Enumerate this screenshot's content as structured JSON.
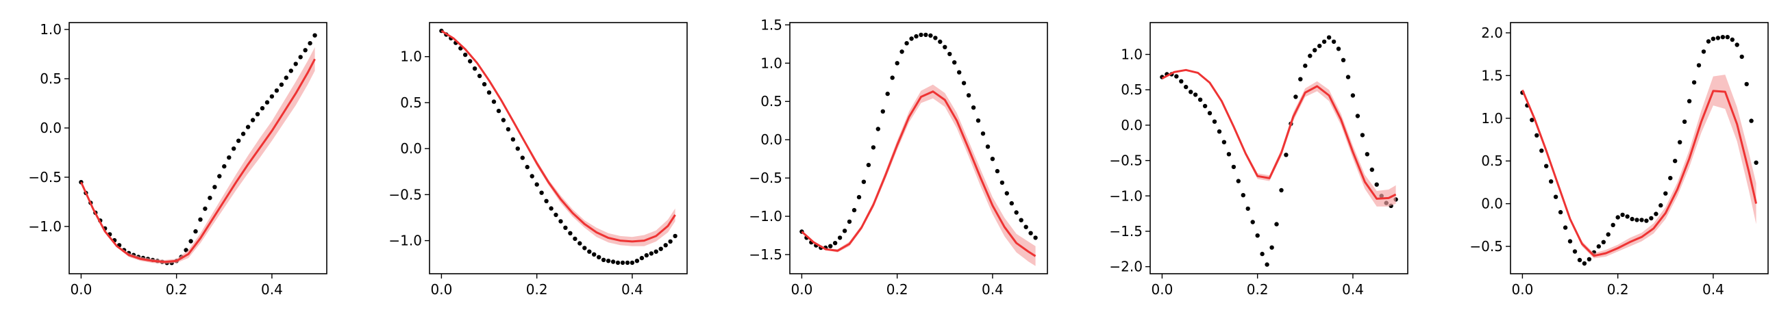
{
  "colors": {
    "background": "#ffffff",
    "axis": "#000000",
    "model_line": "#ee3333",
    "model_band": "#f4a3a3",
    "observations": "#000000"
  },
  "chart_data": [
    {
      "type": "line",
      "xlim": [
        -0.025,
        0.515
      ],
      "ylim": [
        -1.48,
        1.07
      ],
      "xticks": [
        0.0,
        0.2,
        0.4
      ],
      "xtick_labels": [
        "0.0",
        "0.2",
        "0.4"
      ],
      "yticks": [
        -1.0,
        -0.5,
        0.0,
        0.5,
        1.0
      ],
      "ytick_labels": [
        "−1.0",
        "−0.5",
        "0.0",
        "0.5",
        "1.0"
      ],
      "grid": false,
      "series": [
        {
          "kind": "markers",
          "x": [
            0.0,
            0.01,
            0.02,
            0.03,
            0.04,
            0.05,
            0.06,
            0.07,
            0.08,
            0.09,
            0.1,
            0.11,
            0.12,
            0.13,
            0.14,
            0.15,
            0.16,
            0.17,
            0.18,
            0.19,
            0.2,
            0.21,
            0.22,
            0.23,
            0.24,
            0.25,
            0.26,
            0.27,
            0.28,
            0.29,
            0.3,
            0.31,
            0.32,
            0.33,
            0.34,
            0.35,
            0.36,
            0.37,
            0.38,
            0.39,
            0.4,
            0.41,
            0.42,
            0.43,
            0.44,
            0.45,
            0.46,
            0.47,
            0.48,
            0.49
          ],
          "y": [
            -0.55,
            -0.66,
            -0.76,
            -0.86,
            -0.94,
            -1.02,
            -1.08,
            -1.14,
            -1.19,
            -1.24,
            -1.27,
            -1.29,
            -1.31,
            -1.32,
            -1.33,
            -1.34,
            -1.35,
            -1.36,
            -1.37,
            -1.37,
            -1.35,
            -1.31,
            -1.24,
            -1.15,
            -1.05,
            -0.93,
            -0.82,
            -0.71,
            -0.6,
            -0.49,
            -0.39,
            -0.3,
            -0.21,
            -0.13,
            -0.06,
            0.01,
            0.08,
            0.14,
            0.2,
            0.26,
            0.32,
            0.38,
            0.44,
            0.51,
            0.58,
            0.65,
            0.72,
            0.79,
            0.86,
            0.94
          ]
        },
        {
          "kind": "line",
          "x": [
            0.0,
            0.025,
            0.05,
            0.075,
            0.1,
            0.125,
            0.15,
            0.175,
            0.2,
            0.225,
            0.25,
            0.275,
            0.3,
            0.325,
            0.35,
            0.375,
            0.4,
            0.425,
            0.45,
            0.475,
            0.49
          ],
          "y": [
            -0.55,
            -0.82,
            -1.05,
            -1.2,
            -1.29,
            -1.33,
            -1.35,
            -1.36,
            -1.35,
            -1.28,
            -1.12,
            -0.93,
            -0.74,
            -0.55,
            -0.37,
            -0.2,
            -0.03,
            0.16,
            0.35,
            0.56,
            0.7
          ],
          "band": [
            0.0,
            0.0,
            0.01,
            0.01,
            0.02,
            0.02,
            0.02,
            0.02,
            0.02,
            0.04,
            0.05,
            0.06,
            0.07,
            0.08,
            0.09,
            0.1,
            0.1,
            0.11,
            0.12,
            0.12,
            0.12
          ]
        }
      ]
    },
    {
      "type": "line",
      "xlim": [
        -0.025,
        0.515
      ],
      "ylim": [
        -1.36,
        1.37
      ],
      "xticks": [
        0.0,
        0.2,
        0.4
      ],
      "xtick_labels": [
        "0.0",
        "0.2",
        "0.4"
      ],
      "yticks": [
        -1.0,
        -0.5,
        0.0,
        0.5,
        1.0
      ],
      "ytick_labels": [
        "−1.0",
        "−0.5",
        "0.0",
        "0.5",
        "1.0"
      ],
      "grid": false,
      "series": [
        {
          "kind": "markers",
          "x": [
            0.0,
            0.01,
            0.02,
            0.03,
            0.04,
            0.05,
            0.06,
            0.07,
            0.08,
            0.09,
            0.1,
            0.11,
            0.12,
            0.13,
            0.14,
            0.15,
            0.16,
            0.17,
            0.18,
            0.19,
            0.2,
            0.21,
            0.22,
            0.23,
            0.24,
            0.25,
            0.26,
            0.27,
            0.28,
            0.29,
            0.3,
            0.31,
            0.32,
            0.33,
            0.34,
            0.35,
            0.36,
            0.37,
            0.38,
            0.39,
            0.4,
            0.41,
            0.42,
            0.43,
            0.44,
            0.45,
            0.46,
            0.47,
            0.48,
            0.49
          ],
          "y": [
            1.28,
            1.24,
            1.2,
            1.15,
            1.09,
            1.02,
            0.95,
            0.87,
            0.79,
            0.7,
            0.61,
            0.51,
            0.41,
            0.31,
            0.21,
            0.1,
            0.0,
            -0.1,
            -0.2,
            -0.3,
            -0.39,
            -0.48,
            -0.57,
            -0.65,
            -0.72,
            -0.79,
            -0.86,
            -0.92,
            -0.98,
            -1.03,
            -1.08,
            -1.12,
            -1.15,
            -1.18,
            -1.21,
            -1.22,
            -1.23,
            -1.24,
            -1.24,
            -1.24,
            -1.24,
            -1.22,
            -1.19,
            -1.16,
            -1.14,
            -1.12,
            -1.09,
            -1.05,
            -1.01,
            -0.95
          ]
        },
        {
          "kind": "line",
          "x": [
            0.0,
            0.025,
            0.05,
            0.075,
            0.1,
            0.125,
            0.15,
            0.175,
            0.2,
            0.225,
            0.25,
            0.275,
            0.3,
            0.325,
            0.35,
            0.375,
            0.4,
            0.425,
            0.45,
            0.475,
            0.49
          ],
          "y": [
            1.28,
            1.2,
            1.08,
            0.93,
            0.74,
            0.53,
            0.3,
            0.07,
            -0.16,
            -0.37,
            -0.55,
            -0.7,
            -0.82,
            -0.91,
            -0.97,
            -1.0,
            -1.01,
            -1.0,
            -0.95,
            -0.84,
            -0.72
          ],
          "band": [
            0.0,
            0.0,
            0.01,
            0.01,
            0.01,
            0.02,
            0.02,
            0.02,
            0.03,
            0.03,
            0.04,
            0.04,
            0.04,
            0.05,
            0.05,
            0.05,
            0.05,
            0.06,
            0.06,
            0.07,
            0.07
          ]
        }
      ]
    },
    {
      "type": "line",
      "xlim": [
        -0.025,
        0.515
      ],
      "ylim": [
        -1.75,
        1.53
      ],
      "xticks": [
        0.0,
        0.2,
        0.4
      ],
      "xtick_labels": [
        "0.0",
        "0.2",
        "0.4"
      ],
      "yticks": [
        -1.5,
        -1.0,
        -0.5,
        0.0,
        0.5,
        1.0,
        1.5
      ],
      "ytick_labels": [
        "−1.5",
        "−1.0",
        "−0.5",
        "0.0",
        "0.5",
        "1.0",
        "1.5"
      ],
      "grid": false,
      "series": [
        {
          "kind": "markers",
          "x": [
            0.0,
            0.01,
            0.02,
            0.03,
            0.04,
            0.05,
            0.06,
            0.07,
            0.08,
            0.09,
            0.1,
            0.11,
            0.12,
            0.13,
            0.14,
            0.15,
            0.16,
            0.17,
            0.18,
            0.19,
            0.2,
            0.21,
            0.22,
            0.23,
            0.24,
            0.25,
            0.26,
            0.27,
            0.28,
            0.29,
            0.3,
            0.31,
            0.32,
            0.33,
            0.34,
            0.35,
            0.36,
            0.37,
            0.38,
            0.39,
            0.4,
            0.41,
            0.42,
            0.43,
            0.44,
            0.45,
            0.46,
            0.47,
            0.48,
            0.49
          ],
          "y": [
            -1.2,
            -1.28,
            -1.34,
            -1.38,
            -1.41,
            -1.41,
            -1.39,
            -1.35,
            -1.28,
            -1.19,
            -1.07,
            -0.92,
            -0.75,
            -0.55,
            -0.33,
            -0.1,
            0.14,
            0.37,
            0.6,
            0.81,
            1.0,
            1.15,
            1.26,
            1.32,
            1.35,
            1.37,
            1.37,
            1.36,
            1.33,
            1.28,
            1.21,
            1.12,
            1.01,
            0.88,
            0.74,
            0.58,
            0.42,
            0.25,
            0.08,
            -0.09,
            -0.25,
            -0.41,
            -0.56,
            -0.7,
            -0.83,
            -0.95,
            -1.05,
            -1.14,
            -1.22,
            -1.28
          ]
        },
        {
          "kind": "line",
          "x": [
            0.0,
            0.025,
            0.05,
            0.075,
            0.1,
            0.125,
            0.15,
            0.175,
            0.2,
            0.225,
            0.25,
            0.275,
            0.3,
            0.325,
            0.35,
            0.375,
            0.4,
            0.425,
            0.45,
            0.475,
            0.49
          ],
          "y": [
            -1.2,
            -1.34,
            -1.43,
            -1.45,
            -1.36,
            -1.15,
            -0.85,
            -0.47,
            -0.07,
            0.3,
            0.56,
            0.63,
            0.52,
            0.25,
            -0.12,
            -0.5,
            -0.86,
            -1.14,
            -1.35,
            -1.46,
            -1.52
          ],
          "band": [
            0.0,
            0.01,
            0.01,
            0.02,
            0.03,
            0.03,
            0.04,
            0.05,
            0.06,
            0.07,
            0.08,
            0.09,
            0.09,
            0.1,
            0.1,
            0.11,
            0.11,
            0.12,
            0.12,
            0.13,
            0.13
          ]
        }
      ]
    },
    {
      "type": "line",
      "xlim": [
        -0.025,
        0.515
      ],
      "ylim": [
        -2.1,
        1.45
      ],
      "xticks": [
        0.0,
        0.2,
        0.4
      ],
      "xtick_labels": [
        "0.0",
        "0.2",
        "0.4"
      ],
      "yticks": [
        -2.0,
        -1.5,
        -1.0,
        -0.5,
        0.0,
        0.5,
        1.0
      ],
      "ytick_labels": [
        "−2.0",
        "−1.5",
        "−1.0",
        "−0.5",
        "0.0",
        "0.5",
        "1.0"
      ],
      "grid": false,
      "series": [
        {
          "kind": "markers",
          "x": [
            0.0,
            0.01,
            0.02,
            0.03,
            0.04,
            0.05,
            0.06,
            0.07,
            0.08,
            0.09,
            0.1,
            0.11,
            0.12,
            0.13,
            0.14,
            0.15,
            0.16,
            0.17,
            0.18,
            0.19,
            0.2,
            0.21,
            0.22,
            0.23,
            0.24,
            0.25,
            0.26,
            0.27,
            0.28,
            0.29,
            0.3,
            0.31,
            0.32,
            0.33,
            0.34,
            0.35,
            0.36,
            0.37,
            0.38,
            0.39,
            0.4,
            0.41,
            0.42,
            0.43,
            0.44,
            0.45,
            0.46,
            0.47,
            0.48,
            0.49
          ],
          "y": [
            0.68,
            0.72,
            0.72,
            0.69,
            0.62,
            0.54,
            0.47,
            0.43,
            0.36,
            0.27,
            0.17,
            0.05,
            -0.09,
            -0.24,
            -0.41,
            -0.59,
            -0.79,
            -0.99,
            -1.18,
            -1.37,
            -1.56,
            -1.82,
            -1.97,
            -1.73,
            -1.4,
            -0.92,
            -0.42,
            0.02,
            0.4,
            0.65,
            0.84,
            0.98,
            1.06,
            1.12,
            1.18,
            1.24,
            1.18,
            1.08,
            0.92,
            0.68,
            0.42,
            0.13,
            -0.14,
            -0.41,
            -0.63,
            -0.84,
            -1.0,
            -1.1,
            -1.14,
            -1.05
          ]
        },
        {
          "kind": "line",
          "x": [
            0.0,
            0.025,
            0.05,
            0.075,
            0.1,
            0.125,
            0.15,
            0.175,
            0.2,
            0.225,
            0.25,
            0.275,
            0.3,
            0.325,
            0.35,
            0.375,
            0.4,
            0.425,
            0.45,
            0.475,
            0.49
          ],
          "y": [
            0.66,
            0.75,
            0.78,
            0.74,
            0.6,
            0.34,
            -0.02,
            -0.4,
            -0.72,
            -0.75,
            -0.39,
            0.12,
            0.46,
            0.55,
            0.42,
            0.08,
            -0.38,
            -0.8,
            -1.04,
            -1.03,
            -0.98
          ],
          "band": [
            0.0,
            0.0,
            0.01,
            0.01,
            0.01,
            0.02,
            0.02,
            0.03,
            0.04,
            0.04,
            0.05,
            0.06,
            0.06,
            0.07,
            0.08,
            0.08,
            0.09,
            0.1,
            0.11,
            0.12,
            0.13
          ]
        }
      ]
    },
    {
      "type": "line",
      "xlim": [
        -0.025,
        0.515
      ],
      "ylim": [
        -0.82,
        2.12
      ],
      "xticks": [
        0.0,
        0.2,
        0.4
      ],
      "xtick_labels": [
        "0.0",
        "0.2",
        "0.4"
      ],
      "yticks": [
        -0.5,
        0.0,
        0.5,
        1.0,
        1.5,
        2.0
      ],
      "ytick_labels": [
        "−0.5",
        "0.0",
        "0.5",
        "1.0",
        "1.5",
        "2.0"
      ],
      "grid": false,
      "series": [
        {
          "kind": "markers",
          "x": [
            0.0,
            0.01,
            0.02,
            0.03,
            0.04,
            0.05,
            0.06,
            0.07,
            0.08,
            0.09,
            0.1,
            0.11,
            0.12,
            0.13,
            0.14,
            0.15,
            0.16,
            0.17,
            0.18,
            0.19,
            0.2,
            0.21,
            0.22,
            0.23,
            0.24,
            0.25,
            0.26,
            0.27,
            0.28,
            0.29,
            0.3,
            0.31,
            0.32,
            0.33,
            0.34,
            0.35,
            0.36,
            0.37,
            0.38,
            0.39,
            0.4,
            0.41,
            0.42,
            0.43,
            0.44,
            0.45,
            0.46,
            0.47,
            0.48,
            0.49
          ],
          "y": [
            1.3,
            1.15,
            0.98,
            0.8,
            0.62,
            0.44,
            0.26,
            0.08,
            -0.1,
            -0.28,
            -0.44,
            -0.56,
            -0.66,
            -0.7,
            -0.65,
            -0.57,
            -0.5,
            -0.45,
            -0.36,
            -0.25,
            -0.16,
            -0.13,
            -0.15,
            -0.18,
            -0.19,
            -0.19,
            -0.2,
            -0.17,
            -0.12,
            -0.02,
            0.12,
            0.3,
            0.5,
            0.72,
            0.96,
            1.2,
            1.42,
            1.62,
            1.78,
            1.9,
            1.93,
            1.94,
            1.95,
            1.95,
            1.92,
            1.86,
            1.72,
            1.4,
            0.97,
            0.48
          ]
        },
        {
          "kind": "line",
          "x": [
            0.0,
            0.025,
            0.05,
            0.075,
            0.1,
            0.125,
            0.15,
            0.175,
            0.2,
            0.225,
            0.25,
            0.275,
            0.3,
            0.325,
            0.35,
            0.375,
            0.4,
            0.425,
            0.45,
            0.475,
            0.49
          ],
          "y": [
            1.33,
            1.0,
            0.62,
            0.22,
            -0.18,
            -0.47,
            -0.61,
            -0.58,
            -0.52,
            -0.45,
            -0.39,
            -0.29,
            -0.11,
            0.17,
            0.53,
            0.96,
            1.32,
            1.31,
            0.93,
            0.37,
            0.0
          ],
          "band": [
            0.0,
            0.01,
            0.01,
            0.02,
            0.02,
            0.03,
            0.03,
            0.04,
            0.04,
            0.05,
            0.05,
            0.06,
            0.07,
            0.08,
            0.1,
            0.13,
            0.17,
            0.2,
            0.2,
            0.22,
            0.24
          ]
        }
      ]
    }
  ]
}
